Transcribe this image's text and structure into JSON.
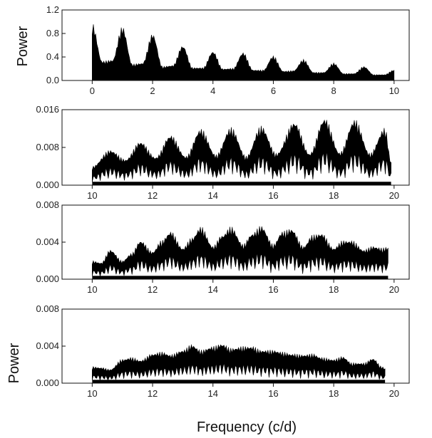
{
  "figure": {
    "xlabel": "Frequency (c/d)",
    "ylabel": "Power"
  },
  "chart_data": [
    {
      "type": "area",
      "title": "",
      "ylabel": "Power",
      "xlabel": "",
      "xlim": [
        -1,
        10.5
      ],
      "ylim": [
        0,
        1.2
      ],
      "xticks": [
        "0",
        "2",
        "4",
        "6",
        "8",
        "10"
      ],
      "yticks": [
        "0.0",
        "0.4",
        "0.8",
        "1.2"
      ],
      "series": [
        {
          "x": [
            0,
            0.33,
            0.67,
            1,
            1.33,
            1.67,
            2,
            2.33,
            2.67,
            3,
            3.33,
            3.67,
            4,
            4.33,
            4.67,
            5,
            5.33,
            5.67,
            6,
            6.33,
            6.67,
            7,
            7.33,
            7.67,
            8,
            8.33,
            8.67,
            9,
            9.33,
            9.67,
            10
          ],
          "y": [
            0.98,
            0.33,
            0.35,
            0.92,
            0.28,
            0.3,
            0.8,
            0.24,
            0.26,
            0.6,
            0.22,
            0.22,
            0.5,
            0.2,
            0.21,
            0.48,
            0.18,
            0.18,
            0.42,
            0.16,
            0.17,
            0.36,
            0.14,
            0.14,
            0.3,
            0.12,
            0.12,
            0.24,
            0.1,
            0.1,
            0.18
          ]
        }
      ]
    },
    {
      "type": "area",
      "title": "",
      "ylabel": "",
      "xlabel": "",
      "xlim": [
        9,
        20.5
      ],
      "ylim": [
        0,
        0.016
      ],
      "xticks": [
        "10",
        "12",
        "14",
        "16",
        "18",
        "20"
      ],
      "yticks": [
        "0.000",
        "0.008",
        "0.016"
      ],
      "series": [
        {
          "x": [
            10.0,
            10.6,
            11.1,
            11.6,
            12.1,
            12.6,
            13.1,
            13.6,
            14.1,
            14.6,
            15.1,
            15.6,
            16.1,
            16.7,
            17.2,
            17.7,
            18.2,
            18.7,
            19.2,
            19.7,
            19.9
          ],
          "y": [
            0.004,
            0.0075,
            0.0055,
            0.0093,
            0.006,
            0.0107,
            0.0062,
            0.012,
            0.0065,
            0.0123,
            0.0062,
            0.0126,
            0.0068,
            0.0135,
            0.0068,
            0.0143,
            0.007,
            0.014,
            0.0068,
            0.0122,
            0.005
          ]
        }
      ]
    },
    {
      "type": "area",
      "title": "",
      "ylabel": "",
      "xlabel": "",
      "xlim": [
        9,
        20.5
      ],
      "ylim": [
        0,
        0.008
      ],
      "xticks": [
        "10",
        "12",
        "14",
        "16",
        "18",
        "20"
      ],
      "yticks": [
        "0.000",
        "0.004",
        "0.008"
      ],
      "series": [
        {
          "x": [
            10.0,
            10.3,
            10.6,
            11.0,
            11.3,
            11.6,
            12.0,
            12.3,
            12.6,
            13.0,
            13.3,
            13.6,
            14.0,
            14.3,
            14.6,
            15.0,
            15.3,
            15.6,
            16.0,
            16.3,
            16.6,
            17.0,
            17.3,
            17.6,
            18.0,
            18.3,
            18.6,
            19.0,
            19.3,
            19.6,
            19.8
          ],
          "y": [
            0.002,
            0.0018,
            0.0032,
            0.002,
            0.0028,
            0.0042,
            0.003,
            0.0042,
            0.0052,
            0.0034,
            0.0045,
            0.0057,
            0.0036,
            0.0048,
            0.0057,
            0.0038,
            0.005,
            0.0058,
            0.0038,
            0.0052,
            0.0055,
            0.0036,
            0.0048,
            0.005,
            0.0034,
            0.0042,
            0.0042,
            0.0032,
            0.0036,
            0.0034,
            0.0035
          ]
        }
      ]
    },
    {
      "type": "area",
      "title": "",
      "ylabel": "Power",
      "xlabel": "Frequency (c/d)",
      "xlim": [
        9,
        20.5
      ],
      "ylim": [
        0,
        0.008
      ],
      "xticks": [
        "10",
        "12",
        "14",
        "16",
        "18",
        "20"
      ],
      "yticks": [
        "0.000",
        "0.004",
        "0.008"
      ],
      "series": [
        {
          "x": [
            10.0,
            10.3,
            10.6,
            11.0,
            11.3,
            11.6,
            12.0,
            12.3,
            12.6,
            13.0,
            13.3,
            13.6,
            14.0,
            14.3,
            14.6,
            15.0,
            15.3,
            15.6,
            16.0,
            16.3,
            16.6,
            17.0,
            17.3,
            17.6,
            18.0,
            18.3,
            18.6,
            19.0,
            19.3,
            19.6,
            19.7
          ],
          "y": [
            0.0018,
            0.0017,
            0.0015,
            0.0026,
            0.0028,
            0.0025,
            0.0032,
            0.0034,
            0.0031,
            0.0036,
            0.0042,
            0.0036,
            0.004,
            0.0043,
            0.0038,
            0.004,
            0.004,
            0.0036,
            0.0036,
            0.0034,
            0.0032,
            0.0031,
            0.0032,
            0.0028,
            0.0026,
            0.0029,
            0.0022,
            0.0022,
            0.0027,
            0.0018,
            0.0016
          ]
        }
      ]
    }
  ]
}
